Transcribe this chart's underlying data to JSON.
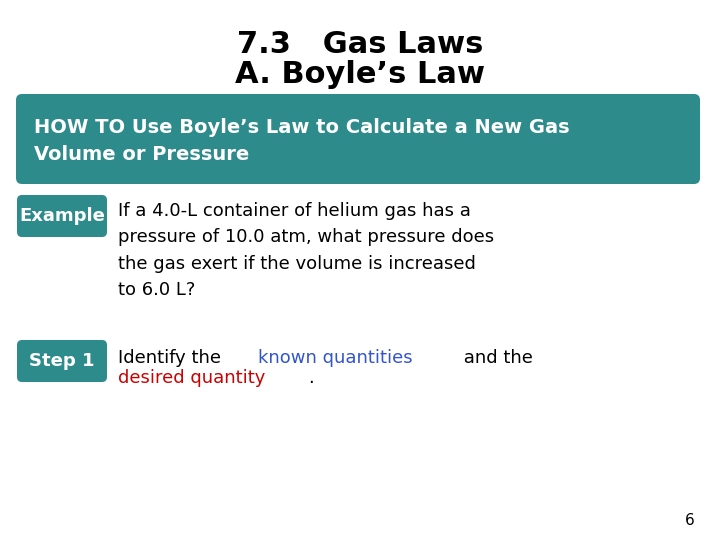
{
  "title_line1": "7.3   Gas Laws",
  "title_line2": "A. Boyle’s Law",
  "title_fontsize": 22,
  "title_color": "#000000",
  "background_color": "#ffffff",
  "howto_box_color": "#2e8b8b",
  "howto_text": "HOW TO Use Boyle’s Law to Calculate a New Gas\nVolume or Pressure",
  "howto_text_color": "#ffffff",
  "howto_fontsize": 14,
  "example_box_color": "#2e8b8b",
  "example_label": "Example",
  "example_label_color": "#ffffff",
  "example_label_fontsize": 13,
  "example_text": "If a 4.0-L container of helium gas has a\npressure of 10.0 atm, what pressure does\nthe gas exert if the volume is increased\nto 6.0 L?",
  "example_text_color": "#000000",
  "example_text_fontsize": 13,
  "step1_box_color": "#2e8b8b",
  "step1_label": "Step 1",
  "step1_label_color": "#ffffff",
  "step1_label_fontsize": 13,
  "step1_text_before": "Identify the ",
  "step1_text_blue": "known quantities",
  "step1_text_middle": " and the",
  "step1_text_red": "desired quantity",
  "step1_text_after": ".",
  "step1_text_color": "#000000",
  "step1_blue_color": "#3355cc",
  "step1_red_color": "#cc0000",
  "step1_fontsize": 13,
  "page_number": "6",
  "page_number_color": "#000000",
  "page_number_fontsize": 11
}
